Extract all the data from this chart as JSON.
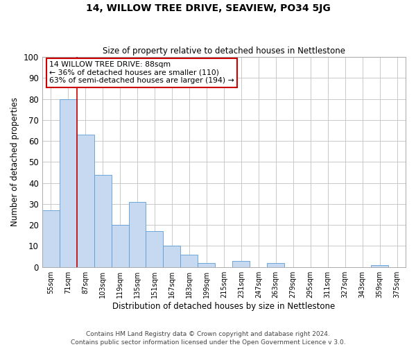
{
  "title": "14, WILLOW TREE DRIVE, SEAVIEW, PO34 5JG",
  "subtitle": "Size of property relative to detached houses in Nettlestone",
  "xlabel": "Distribution of detached houses by size in Nettlestone",
  "ylabel": "Number of detached properties",
  "bin_labels": [
    "55sqm",
    "71sqm",
    "87sqm",
    "103sqm",
    "119sqm",
    "135sqm",
    "151sqm",
    "167sqm",
    "183sqm",
    "199sqm",
    "215sqm",
    "231sqm",
    "247sqm",
    "263sqm",
    "279sqm",
    "295sqm",
    "311sqm",
    "327sqm",
    "343sqm",
    "359sqm",
    "375sqm"
  ],
  "bar_heights": [
    27,
    80,
    63,
    44,
    20,
    31,
    17,
    10,
    6,
    2,
    0,
    3,
    0,
    2,
    0,
    0,
    0,
    0,
    0,
    1,
    0
  ],
  "bar_color": "#c6d9f0",
  "bar_edgecolor": "#5b9bd5",
  "property_line_x": 2,
  "ylim": [
    0,
    100
  ],
  "yticks": [
    0,
    10,
    20,
    30,
    40,
    50,
    60,
    70,
    80,
    90,
    100
  ],
  "annotation_title": "14 WILLOW TREE DRIVE: 88sqm",
  "annotation_line1": "← 36% of detached houses are smaller (110)",
  "annotation_line2": "63% of semi-detached houses are larger (194) →",
  "annotation_box_color": "#ffffff",
  "annotation_box_edgecolor": "#cc0000",
  "vline_color": "#cc0000",
  "footer_line1": "Contains HM Land Registry data © Crown copyright and database right 2024.",
  "footer_line2": "Contains public sector information licensed under the Open Government Licence v 3.0.",
  "background_color": "#ffffff",
  "grid_color": "#c0c0c0"
}
